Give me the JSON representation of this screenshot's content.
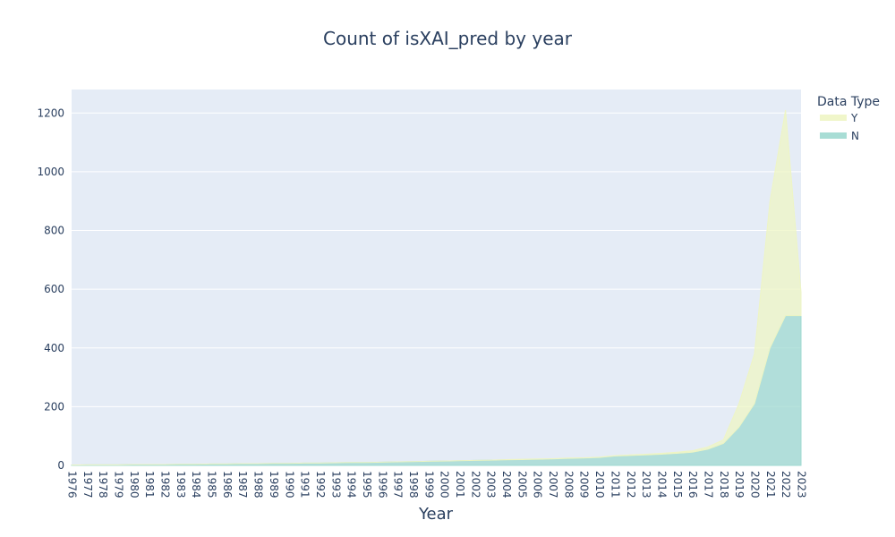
{
  "chart_data": {
    "type": "area",
    "title": "Count of isXAI_pred by year",
    "xlabel": "Year",
    "ylabel": "",
    "ylim": [
      0,
      1280
    ],
    "yticks": [
      0,
      200,
      400,
      600,
      800,
      1000,
      1200
    ],
    "stacked": true,
    "grid": true,
    "legend_title": "Data Type",
    "legend_position": "top-right",
    "x": [
      1976,
      1977,
      1978,
      1979,
      1980,
      1981,
      1982,
      1983,
      1984,
      1985,
      1986,
      1987,
      1988,
      1989,
      1990,
      1991,
      1992,
      1993,
      1994,
      1995,
      1996,
      1997,
      1998,
      1999,
      2000,
      2001,
      2002,
      2003,
      2004,
      2005,
      2006,
      2007,
      2008,
      2009,
      2010,
      2011,
      2012,
      2013,
      2014,
      2015,
      2016,
      2017,
      2018,
      2019,
      2020,
      2021,
      2022,
      2023
    ],
    "series": [
      {
        "name": "N",
        "color": "#9fd9d0",
        "values": [
          1,
          2,
          2,
          2,
          3,
          3,
          3,
          4,
          4,
          5,
          5,
          6,
          6,
          7,
          7,
          8,
          8,
          9,
          10,
          10,
          11,
          12,
          13,
          14,
          15,
          16,
          17,
          18,
          19,
          20,
          21,
          22,
          24,
          25,
          27,
          32,
          34,
          36,
          38,
          41,
          45,
          55,
          75,
          130,
          210,
          400,
          510,
          510
        ]
      },
      {
        "name": "Y",
        "color": "#eef5c4",
        "values": [
          0,
          0,
          0,
          0,
          0,
          0,
          0,
          0,
          0,
          0,
          0,
          0,
          0,
          0,
          0,
          0,
          0,
          0,
          0,
          0,
          0,
          0,
          0,
          0,
          0,
          0,
          0,
          0,
          1,
          1,
          1,
          1,
          1,
          1,
          1,
          1,
          2,
          2,
          3,
          4,
          5,
          8,
          12,
          80,
          170,
          500,
          700,
          80
        ]
      }
    ]
  }
}
